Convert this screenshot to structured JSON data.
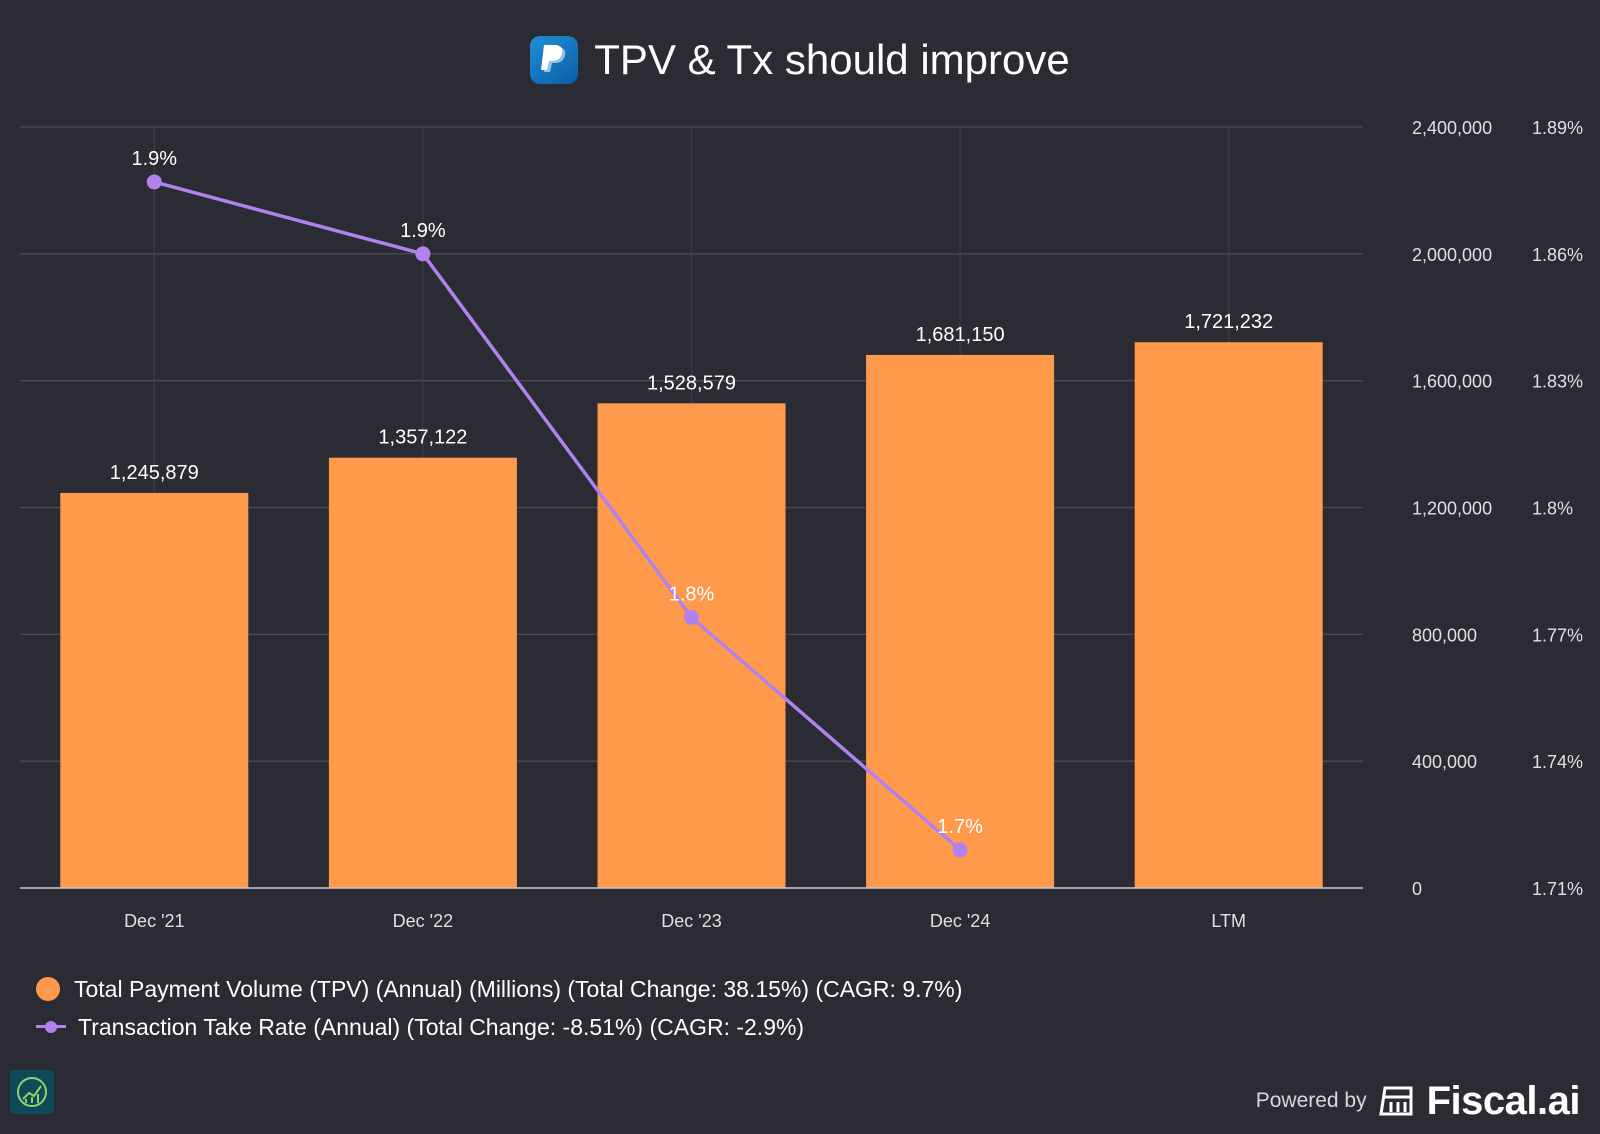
{
  "title": "TPV & Tx should improve",
  "icons": {
    "logo": "paypal-logo-icon",
    "badge": "growth-chart-badge-icon",
    "brand": "fiscal-ai-logo-icon"
  },
  "colors": {
    "background": "#2a2b33",
    "bar": "#ff9a4d",
    "line": "#b182ee",
    "grid": "#4a4b55",
    "axis_text": "#e0e0e4"
  },
  "chart_data": {
    "type": "bar+line",
    "title": "TPV & Tx should improve",
    "categories": [
      "Dec '21",
      "Dec '22",
      "Dec '23",
      "Dec '24",
      "LTM"
    ],
    "series": [
      {
        "name": "Total Payment Volume (TPV) (Annual) (Millions)",
        "type": "bar",
        "axis": "left",
        "values": [
          1245879,
          1357122,
          1528579,
          1681150,
          1721232
        ],
        "labels": [
          "1,245,879",
          "1,357,122",
          "1,528,579",
          "1,681,150",
          "1,721,232"
        ]
      },
      {
        "name": "Transaction Take Rate (Annual)",
        "type": "line",
        "axis": "right",
        "values": [
          1.877,
          1.86,
          1.774,
          1.719,
          null
        ],
        "labels": [
          "1.9%",
          "1.9%",
          "1.8%",
          "1.7%",
          null
        ]
      }
    ],
    "y_left": {
      "min": 0,
      "max": 2400000,
      "ticks": [
        0,
        400000,
        800000,
        1200000,
        1600000,
        2000000,
        2400000
      ],
      "tick_labels": [
        "0",
        "400,000",
        "800,000",
        "1,200,000",
        "1,600,000",
        "2,000,000",
        "2,400,000"
      ]
    },
    "y_right": {
      "min": 1.71,
      "max": 1.89,
      "ticks": [
        1.71,
        1.74,
        1.77,
        1.8,
        1.83,
        1.86,
        1.89
      ],
      "tick_labels": [
        "1.71%",
        "1.74%",
        "1.77%",
        "1.8%",
        "1.83%",
        "1.86%",
        "1.89%"
      ]
    },
    "grid": true,
    "legend_position": "bottom-left"
  },
  "legend": [
    "Total Payment Volume (TPV) (Annual) (Millions) (Total Change: 38.15%) (CAGR: 9.7%)",
    "Transaction Take Rate (Annual) (Total Change: -8.51%) (CAGR: -2.9%)"
  ],
  "footer": {
    "powered_by": "Powered by",
    "brand": "Fiscal.ai"
  }
}
